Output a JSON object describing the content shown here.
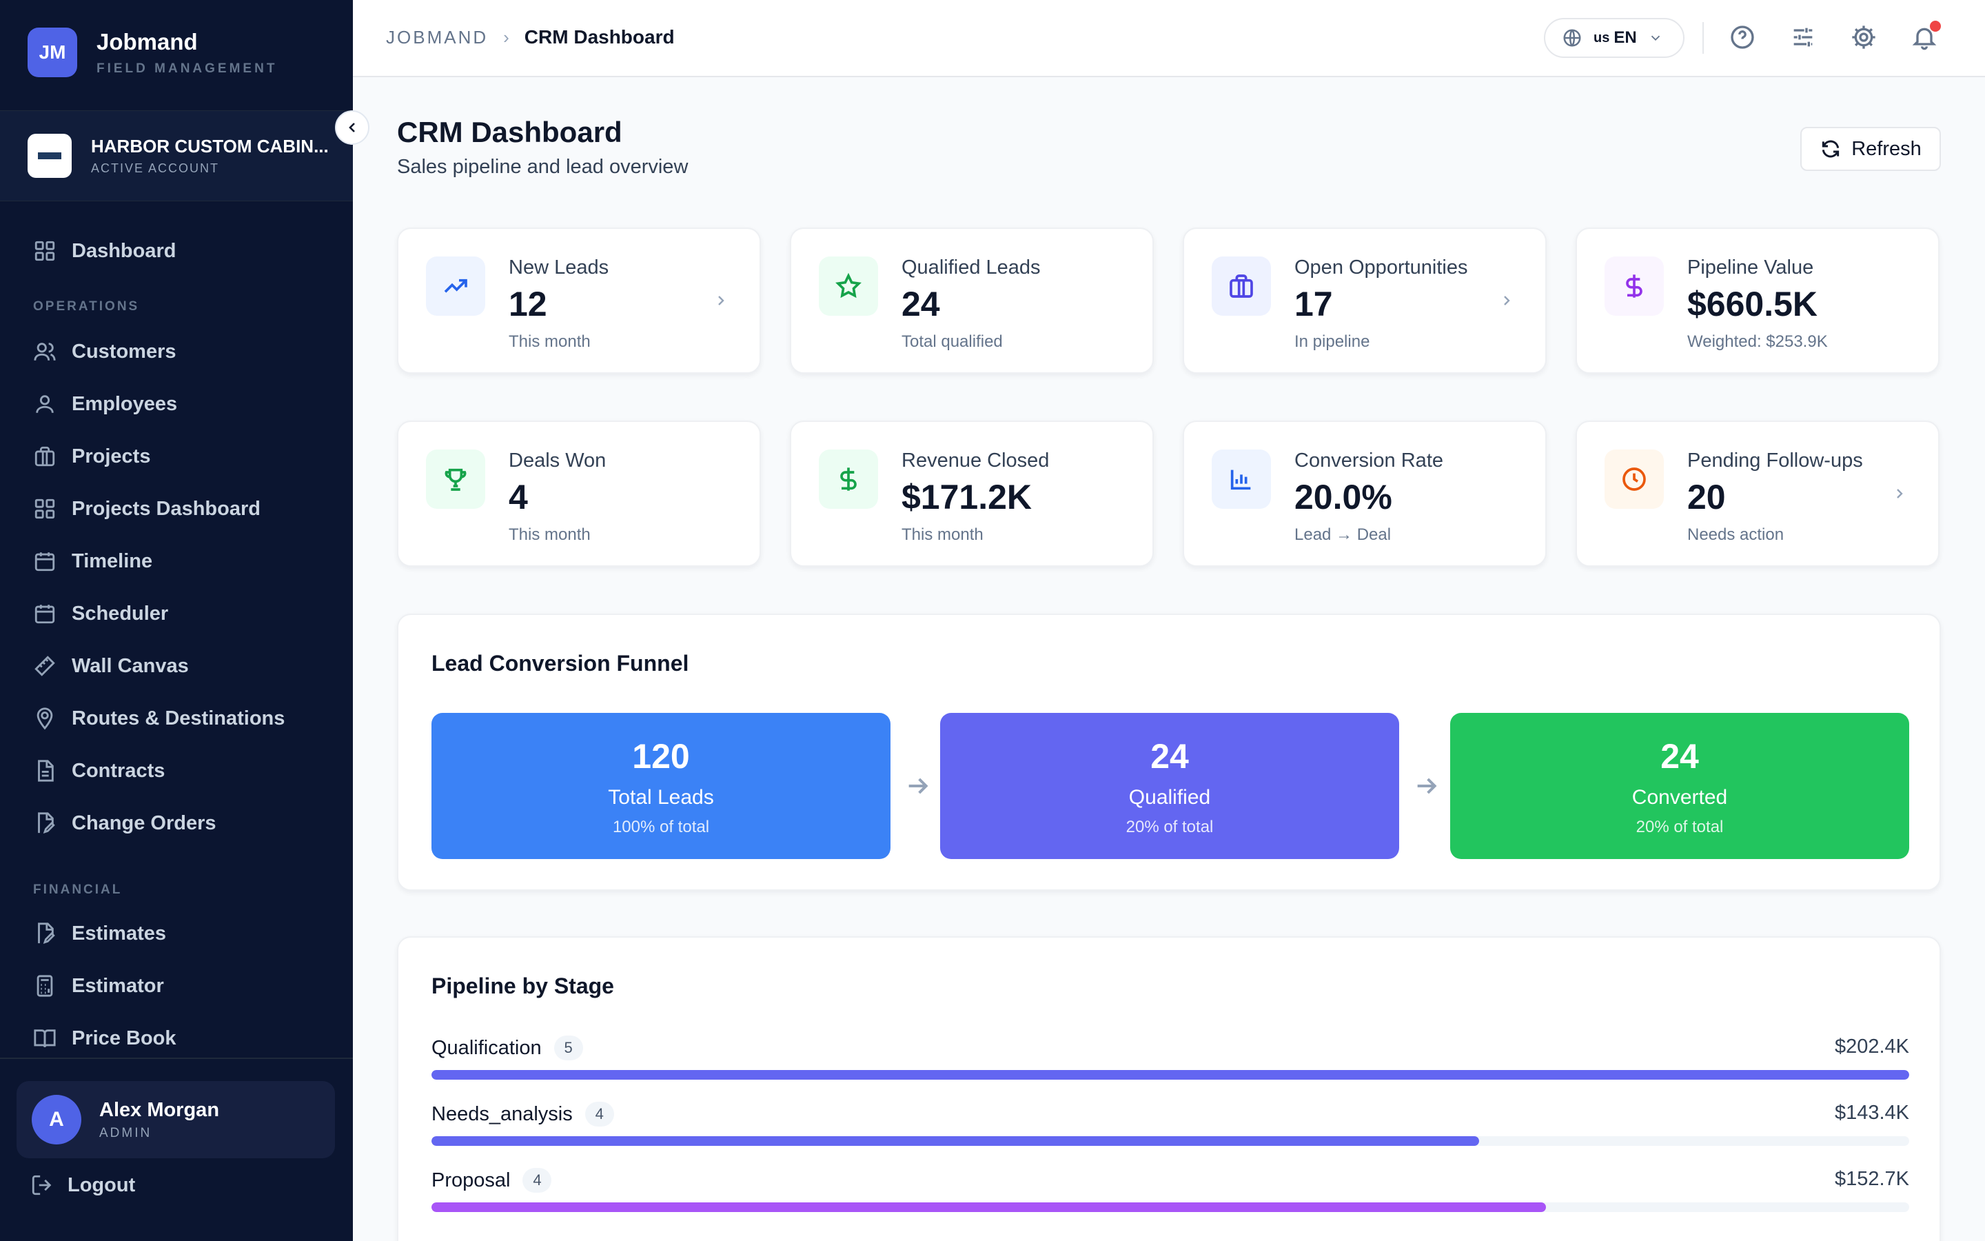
{
  "brand": {
    "initials": "JM",
    "name": "Jobmand",
    "subtitle": "FIELD MANAGEMENT"
  },
  "account": {
    "name": "HARBOR CUSTOM CABIN...",
    "status": "ACTIVE ACCOUNT"
  },
  "sidebar": {
    "dashboard": "Dashboard",
    "operations_label": "OPERATIONS",
    "operations": [
      {
        "label": "Customers",
        "icon": "users-icon"
      },
      {
        "label": "Employees",
        "icon": "user-icon"
      },
      {
        "label": "Projects",
        "icon": "briefcase-icon"
      },
      {
        "label": "Projects Dashboard",
        "icon": "grid-icon"
      },
      {
        "label": "Timeline",
        "icon": "calendar-icon"
      },
      {
        "label": "Scheduler",
        "icon": "calendar-icon"
      },
      {
        "label": "Wall Canvas",
        "icon": "ruler-icon"
      },
      {
        "label": "Routes & Destinations",
        "icon": "map-pin-icon"
      },
      {
        "label": "Contracts",
        "icon": "file-text-icon"
      },
      {
        "label": "Change Orders",
        "icon": "file-edit-icon"
      }
    ],
    "financial_label": "FINANCIAL",
    "financial": [
      {
        "label": "Estimates",
        "icon": "file-edit-icon"
      },
      {
        "label": "Estimator",
        "icon": "calculator-icon"
      },
      {
        "label": "Price Book",
        "icon": "book-icon"
      }
    ]
  },
  "user": {
    "initial": "A",
    "name": "Alex Morgan",
    "role": "ADMIN"
  },
  "logout_label": "Logout",
  "topbar": {
    "breadcrumb_root": "JOBMAND",
    "breadcrumb_sep": "›",
    "breadcrumb_current": "CRM Dashboard",
    "language_flag": "us",
    "language": "EN"
  },
  "header": {
    "title": "CRM Dashboard",
    "subtitle": "Sales pipeline and lead overview",
    "refresh_label": "Refresh"
  },
  "stats": [
    {
      "label": "New Leads",
      "value": "12",
      "note": "This month",
      "icon": "trending-up-icon",
      "color": "#2563eb",
      "bg": "#eef4ff",
      "chevron": true
    },
    {
      "label": "Qualified Leads",
      "value": "24",
      "note": "Total qualified",
      "icon": "star-icon",
      "color": "#16a34a",
      "bg": "#ecfdf3",
      "chevron": false
    },
    {
      "label": "Open Opportunities",
      "value": "17",
      "note": "In pipeline",
      "icon": "briefcase-icon",
      "color": "#4f46e5",
      "bg": "#eef2ff",
      "chevron": true
    },
    {
      "label": "Pipeline Value",
      "value": "$660.5K",
      "note": "Weighted: $253.9K",
      "icon": "dollar-icon",
      "color": "#9333ea",
      "bg": "#faf5ff",
      "chevron": false
    },
    {
      "label": "Deals Won",
      "value": "4",
      "note": "This month",
      "icon": "trophy-icon",
      "color": "#16a34a",
      "bg": "#ecfdf3",
      "chevron": false
    },
    {
      "label": "Revenue Closed",
      "value": "$171.2K",
      "note": "This month",
      "icon": "dollar-icon",
      "color": "#16a34a",
      "bg": "#ecfdf3",
      "chevron": false
    },
    {
      "label": "Conversion Rate",
      "value": "20.0%",
      "note": "Lead → Deal",
      "icon": "bar-chart-icon",
      "color": "#2563eb",
      "bg": "#eef4ff",
      "chevron": false
    },
    {
      "label": "Pending Follow-ups",
      "value": "20",
      "note": "Needs action",
      "icon": "clock-icon",
      "color": "#ea580c",
      "bg": "#fff7ed",
      "chevron": true
    }
  ],
  "funnel": {
    "title": "Lead Conversion Funnel",
    "stages": [
      {
        "value": "120",
        "label": "Total Leads",
        "pct": "100% of total",
        "color": "#3b82f6"
      },
      {
        "value": "24",
        "label": "Qualified",
        "pct": "20% of total",
        "color": "#6366f1"
      },
      {
        "value": "24",
        "label": "Converted",
        "pct": "20% of total",
        "color": "#22c55e"
      }
    ]
  },
  "pipeline": {
    "title": "Pipeline by Stage",
    "stages": [
      {
        "name": "Qualification",
        "count": "5",
        "amount": "$202.4K",
        "fraction": 1.0,
        "color": "#6366f1"
      },
      {
        "name": "Needs_analysis",
        "count": "4",
        "amount": "$143.4K",
        "fraction": 0.709,
        "color": "#6366f1"
      },
      {
        "name": "Proposal",
        "count": "4",
        "amount": "$152.7K",
        "fraction": 0.754,
        "color": "#a855f7"
      }
    ]
  }
}
